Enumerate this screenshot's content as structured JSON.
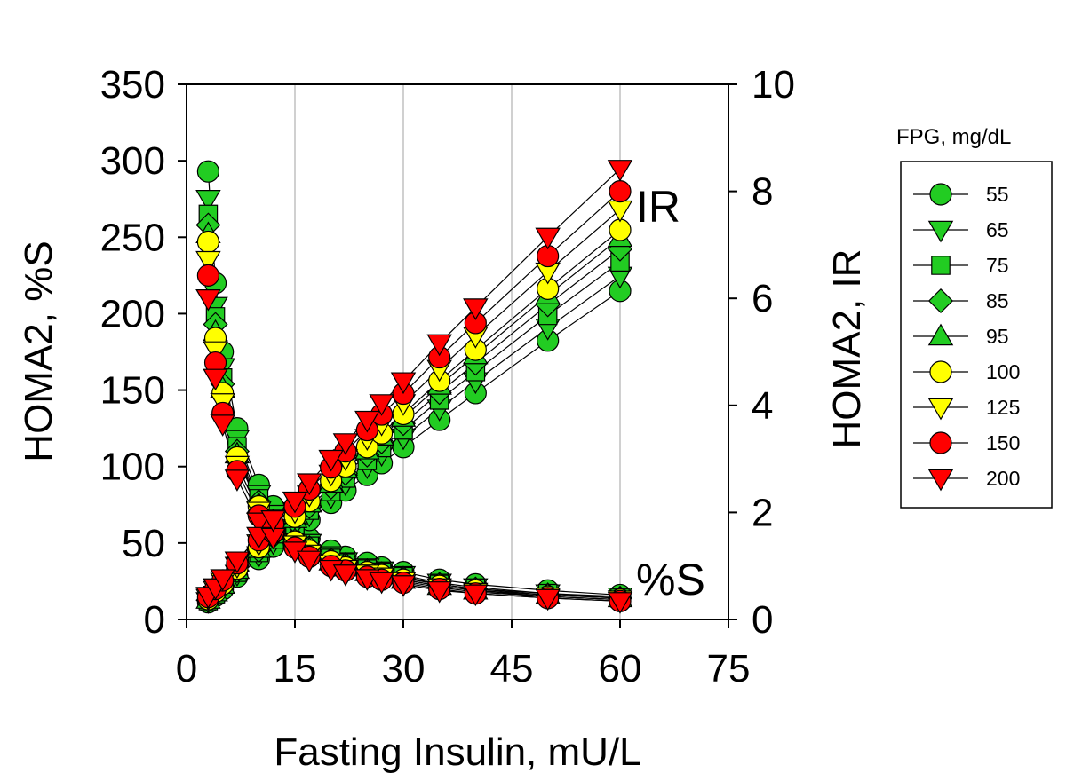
{
  "chart_data": {
    "type": "scatter",
    "x": [
      3,
      4,
      5,
      7,
      10,
      12,
      15,
      17,
      20,
      22,
      25,
      27,
      30,
      35,
      40,
      50,
      60
    ],
    "xlabel": "Fasting Insulin, mU/L",
    "ylabel_left": "HOMA2,  %S",
    "ylabel_right": "HOMA2, IR",
    "xlim": [
      0,
      75
    ],
    "xticks": [
      0,
      15,
      30,
      45,
      60,
      75
    ],
    "ylim_left": [
      0,
      350
    ],
    "yticks_left": [
      0,
      50,
      100,
      150,
      200,
      250,
      300,
      350
    ],
    "ylim_right": [
      0,
      10
    ],
    "yticks_right": [
      0,
      2,
      4,
      6,
      8,
      10
    ],
    "grid": "vertical lines at x ticks",
    "annotations": [
      "IR",
      "%S"
    ],
    "legend": {
      "title": "FPG, mg/dL",
      "placement": "right"
    },
    "series": [
      {
        "name": "55",
        "color": "#22cc22",
        "marker": "circle",
        "percent_s": [
          293,
          220,
          175,
          125,
          88,
          74,
          62,
          53,
          45,
          41,
          37,
          34,
          31,
          26,
          23,
          19,
          16
        ],
        "ir": [
          0.32,
          0.44,
          0.56,
          0.8,
          1.13,
          1.36,
          1.61,
          1.86,
          2.18,
          2.41,
          2.7,
          2.92,
          3.22,
          3.73,
          4.23,
          5.21,
          6.14
        ]
      },
      {
        "name": "65",
        "color": "#22cc22",
        "marker": "triangle-down",
        "percent_s": [
          275,
          205,
          165,
          118,
          82,
          69,
          57,
          50,
          42,
          38,
          34,
          32,
          29,
          24,
          21,
          17,
          15
        ],
        "ir": [
          0.34,
          0.46,
          0.59,
          0.85,
          1.2,
          1.44,
          1.7,
          1.96,
          2.3,
          2.54,
          2.86,
          3.09,
          3.4,
          3.94,
          4.45,
          5.45,
          6.42
        ]
      },
      {
        "name": "75",
        "color": "#22cc22",
        "marker": "square",
        "percent_s": [
          265,
          198,
          158,
          113,
          79,
          66,
          55,
          48,
          40,
          37,
          33,
          31,
          28,
          23,
          20,
          17,
          14
        ],
        "ir": [
          0.35,
          0.48,
          0.61,
          0.88,
          1.25,
          1.5,
          1.77,
          2.04,
          2.39,
          2.64,
          2.97,
          3.21,
          3.54,
          4.1,
          4.63,
          5.68,
          6.68
        ]
      },
      {
        "name": "85",
        "color": "#22cc22",
        "marker": "diamond",
        "percent_s": [
          258,
          193,
          154,
          110,
          77,
          64,
          53,
          47,
          39,
          36,
          32,
          30,
          27,
          23,
          20,
          16,
          14
        ],
        "ir": [
          0.36,
          0.5,
          0.63,
          0.91,
          1.29,
          1.55,
          1.83,
          2.11,
          2.47,
          2.73,
          3.07,
          3.32,
          3.66,
          4.24,
          4.79,
          5.88,
          6.92
        ]
      },
      {
        "name": "95",
        "color": "#22cc22",
        "marker": "triangle-up",
        "percent_s": [
          252,
          188,
          151,
          108,
          75,
          63,
          52,
          46,
          38,
          35,
          31,
          29,
          26,
          22,
          19,
          16,
          14
        ],
        "ir": [
          0.37,
          0.51,
          0.65,
          0.93,
          1.32,
          1.59,
          1.88,
          2.17,
          2.54,
          2.81,
          3.16,
          3.42,
          3.77,
          4.37,
          4.94,
          6.06,
          7.13
        ]
      },
      {
        "name": "100",
        "color": "#ffff00",
        "marker": "circle",
        "percent_s": [
          247,
          184,
          148,
          106,
          74,
          62,
          51,
          45,
          38,
          34,
          31,
          29,
          26,
          22,
          19,
          15,
          13
        ],
        "ir": [
          0.38,
          0.52,
          0.66,
          0.95,
          1.35,
          1.62,
          1.92,
          2.21,
          2.59,
          2.86,
          3.22,
          3.48,
          3.84,
          4.46,
          5.04,
          6.18,
          7.28
        ]
      },
      {
        "name": "125",
        "color": "#ffff00",
        "marker": "triangle-down",
        "percent_s": [
          235,
          176,
          142,
          101,
          71,
          59,
          49,
          43,
          36,
          33,
          30,
          28,
          25,
          21,
          18,
          15,
          13
        ],
        "ir": [
          0.4,
          0.55,
          0.7,
          1.0,
          1.42,
          1.7,
          2.02,
          2.33,
          2.72,
          3.01,
          3.39,
          3.66,
          4.04,
          4.68,
          5.3,
          6.5,
          7.66
        ]
      },
      {
        "name": "150",
        "color": "#ff0000",
        "marker": "circle",
        "percent_s": [
          225,
          168,
          135,
          97,
          68,
          57,
          47,
          41,
          35,
          32,
          28,
          26,
          24,
          20,
          17,
          14,
          12
        ],
        "ir": [
          0.42,
          0.57,
          0.73,
          1.05,
          1.48,
          1.78,
          2.11,
          2.43,
          2.84,
          3.14,
          3.54,
          3.83,
          4.22,
          4.9,
          5.54,
          6.79,
          8.0
        ]
      },
      {
        "name": "200",
        "color": "#ff0000",
        "marker": "triangle-down",
        "percent_s": [
          210,
          158,
          128,
          92,
          64,
          54,
          45,
          39,
          33,
          30,
          27,
          25,
          23,
          19,
          17,
          14,
          12
        ],
        "ir": [
          0.44,
          0.6,
          0.77,
          1.1,
          1.56,
          1.87,
          2.22,
          2.56,
          3.0,
          3.31,
          3.73,
          4.04,
          4.45,
          5.16,
          5.83,
          7.15,
          8.42
        ]
      }
    ]
  }
}
